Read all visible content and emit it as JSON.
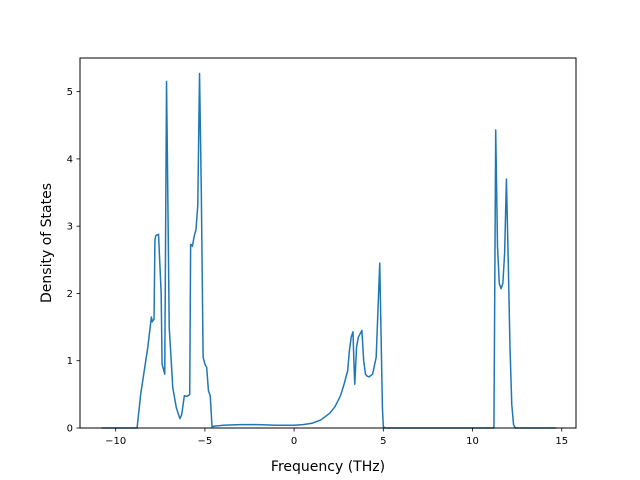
{
  "chart_data": {
    "type": "line",
    "title": "",
    "xlabel": "Frequency (THz)",
    "ylabel": "Density of States",
    "xlim": [
      -12.0,
      15.8
    ],
    "ylim": [
      0,
      5.5
    ],
    "xticks": [
      -10,
      -5,
      0,
      5,
      10,
      15
    ],
    "xtick_labels": [
      "−10",
      "−5",
      "0",
      "5",
      "10",
      "15"
    ],
    "yticks": [
      0,
      1,
      2,
      3,
      4,
      5
    ],
    "ytick_labels": [
      "0",
      "1",
      "2",
      "3",
      "4",
      "5"
    ],
    "grid": false,
    "legend": "none",
    "series": [
      {
        "color": "#1f77b4",
        "x": [
          -10.8,
          -8.8,
          -8.6,
          -8.2,
          -8.0,
          -7.95,
          -7.85,
          -7.8,
          -7.75,
          -7.6,
          -7.45,
          -7.4,
          -7.25,
          -7.15,
          -7.1,
          -7.0,
          -6.8,
          -6.6,
          -6.4,
          -6.3,
          -6.15,
          -6.0,
          -5.85,
          -5.8,
          -5.75,
          -5.7,
          -5.6,
          -5.5,
          -5.4,
          -5.3,
          -5.2,
          -5.1,
          -5.0,
          -4.9,
          -4.8,
          -4.7,
          -4.6,
          -4.4,
          -4.0,
          -3.0,
          -2.0,
          -1.0,
          0.0,
          0.5,
          1.0,
          1.5,
          2.0,
          2.3,
          2.6,
          2.8,
          3.0,
          3.1,
          3.2,
          3.3,
          3.35,
          3.4,
          3.5,
          3.6,
          3.7,
          3.8,
          3.9,
          4.0,
          4.1,
          4.2,
          4.4,
          4.6,
          4.8,
          4.95,
          5.0,
          5.1,
          5.2,
          5.4,
          6.0,
          8.0,
          10.0,
          11.0,
          11.2,
          11.3,
          11.4,
          11.5,
          11.6,
          11.7,
          11.8,
          11.9,
          12.0,
          12.1,
          12.2,
          12.3,
          12.4,
          12.6,
          13.0,
          14.0,
          14.7
        ],
        "y": [
          0.0,
          0.0,
          0.5,
          1.2,
          1.65,
          1.58,
          1.62,
          2.8,
          2.86,
          2.88,
          2.0,
          0.95,
          0.8,
          5.15,
          4.0,
          1.5,
          0.6,
          0.3,
          0.14,
          0.2,
          0.48,
          0.47,
          0.5,
          2.73,
          2.72,
          2.7,
          2.85,
          2.95,
          3.3,
          5.27,
          3.5,
          1.05,
          0.95,
          0.9,
          0.55,
          0.48,
          0.02,
          0.03,
          0.04,
          0.05,
          0.05,
          0.04,
          0.04,
          0.05,
          0.07,
          0.12,
          0.22,
          0.32,
          0.48,
          0.65,
          0.85,
          1.15,
          1.35,
          1.43,
          1.0,
          0.65,
          1.2,
          1.35,
          1.4,
          1.45,
          1.0,
          0.8,
          0.77,
          0.76,
          0.8,
          1.05,
          2.45,
          0.3,
          0.02,
          0.0,
          0.0,
          0.0,
          0.0,
          0.0,
          0.0,
          0.0,
          0.0,
          4.43,
          2.7,
          2.15,
          2.07,
          2.15,
          2.6,
          3.7,
          2.5,
          1.2,
          0.35,
          0.05,
          0.0,
          0.0,
          0.0,
          0.0,
          0.0
        ]
      }
    ]
  }
}
